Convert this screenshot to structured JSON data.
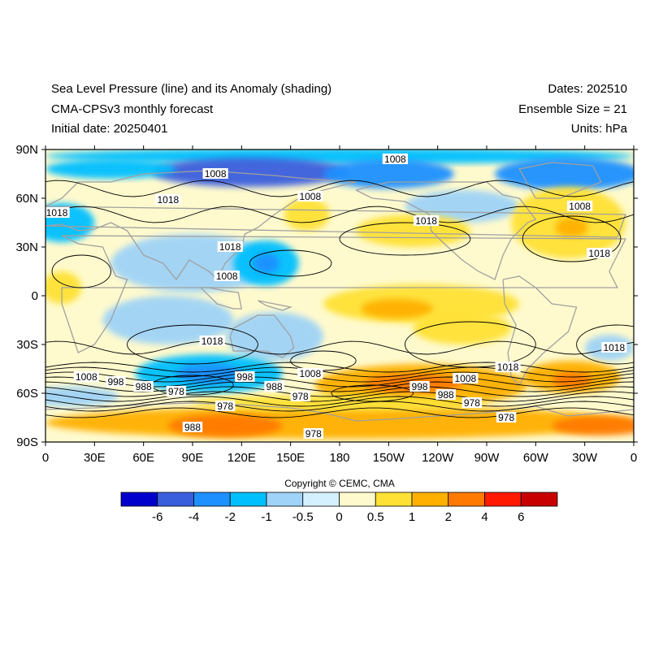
{
  "header": {
    "title": "Sea Level Pressure (line) and its Anomaly (shading)",
    "model": "CMA-CPSv3 monthly forecast",
    "initial_date": "Initial date: 20250401",
    "dates": "Dates: 202510",
    "ensemble": "Ensemble Size = 21",
    "units": "Units: hPa"
  },
  "axes": {
    "lat_ticks": [
      "90N",
      "60N",
      "30N",
      "0",
      "30S",
      "60S",
      "90S"
    ],
    "lon_ticks": [
      "0",
      "30E",
      "60E",
      "90E",
      "120E",
      "150E",
      "180",
      "150W",
      "120W",
      "90W",
      "60W",
      "30W",
      "0"
    ]
  },
  "contour_labels": [
    {
      "text": "1008",
      "lon": 214,
      "lat": 84
    },
    {
      "text": "1008",
      "lon": 104,
      "lat": 75
    },
    {
      "text": "1008",
      "lon": 162,
      "lat": 61
    },
    {
      "text": "1008",
      "lon": 327,
      "lat": 55
    },
    {
      "text": "1018",
      "lon": 7,
      "lat": 51
    },
    {
      "text": "1018",
      "lon": 75,
      "lat": 59
    },
    {
      "text": "1018",
      "lon": 233,
      "lat": 46
    },
    {
      "text": "1018",
      "lon": 113,
      "lat": 30
    },
    {
      "text": "1008",
      "lon": 111,
      "lat": 12
    },
    {
      "text": "1018",
      "lon": 339,
      "lat": 26
    },
    {
      "text": "1018",
      "lon": 102,
      "lat": -28
    },
    {
      "text": "1018",
      "lon": 348,
      "lat": -32
    },
    {
      "text": "1018",
      "lon": 283,
      "lat": -44
    },
    {
      "text": "1008",
      "lon": 25,
      "lat": -50
    },
    {
      "text": "998",
      "lon": 43,
      "lat": -53
    },
    {
      "text": "988",
      "lon": 60,
      "lat": -56
    },
    {
      "text": "978",
      "lon": 80,
      "lat": -59
    },
    {
      "text": "998",
      "lon": 122,
      "lat": -50
    },
    {
      "text": "988",
      "lon": 140,
      "lat": -56
    },
    {
      "text": "1008",
      "lon": 162,
      "lat": -48
    },
    {
      "text": "978",
      "lon": 156,
      "lat": -62
    },
    {
      "text": "998",
      "lon": 229,
      "lat": -56
    },
    {
      "text": "988",
      "lon": 245,
      "lat": -61
    },
    {
      "text": "1008",
      "lon": 257,
      "lat": -51
    },
    {
      "text": "978",
      "lon": 261,
      "lat": -66
    },
    {
      "text": "978",
      "lon": 110,
      "lat": -68
    },
    {
      "text": "978",
      "lon": 282,
      "lat": -75
    },
    {
      "text": "988",
      "lon": 90,
      "lat": -81
    },
    {
      "text": "978",
      "lon": 164,
      "lat": -85
    }
  ],
  "colorbar": {
    "ticks": [
      "-6",
      "-4",
      "-2",
      "-1",
      "-0.5",
      "0",
      "0.5",
      "1",
      "2",
      "4",
      "6"
    ],
    "colors": [
      "#0000cd",
      "#3a5fdd",
      "#1e90ff",
      "#00bfff",
      "#9fd3f7",
      "#d4f1ff",
      "#fffacd",
      "#ffe135",
      "#ffb000",
      "#ff7a00",
      "#ff1a00",
      "#c80000"
    ]
  },
  "copyright": "Copyright © CEMC, CMA",
  "anomaly_regions": [
    {
      "lon": 180,
      "lat": 86,
      "rx": 180,
      "ry": 5,
      "level": 3
    },
    {
      "lon": 125,
      "lat": 76,
      "rx": 60,
      "ry": 9,
      "level": 1
    },
    {
      "lon": 210,
      "lat": 75,
      "rx": 40,
      "ry": 9,
      "level": 2
    },
    {
      "lon": 40,
      "lat": 78,
      "rx": 40,
      "ry": 6,
      "level": 3
    },
    {
      "lon": 320,
      "lat": 75,
      "rx": 45,
      "ry": 10,
      "level": 2
    },
    {
      "lon": 10,
      "lat": 45,
      "rx": 20,
      "ry": 12,
      "level": 3
    },
    {
      "lon": 255,
      "lat": 55,
      "rx": 35,
      "ry": 10,
      "level": 4
    },
    {
      "lon": 320,
      "lat": 45,
      "rx": 35,
      "ry": 22,
      "level": 7
    },
    {
      "lon": 322,
      "lat": 42,
      "rx": 10,
      "ry": 6,
      "level": 8
    },
    {
      "lon": 160,
      "lat": 50,
      "rx": 14,
      "ry": 10,
      "level": 7
    },
    {
      "lon": 225,
      "lat": 40,
      "rx": 35,
      "ry": 10,
      "level": 7
    },
    {
      "lon": 90,
      "lat": 20,
      "rx": 50,
      "ry": 18,
      "level": 4
    },
    {
      "lon": 135,
      "lat": 20,
      "rx": 20,
      "ry": 14,
      "level": 3
    },
    {
      "lon": 135,
      "lat": 20,
      "rx": 8,
      "ry": 6,
      "level": 2
    },
    {
      "lon": 75,
      "lat": -15,
      "rx": 40,
      "ry": 15,
      "level": 4
    },
    {
      "lon": 140,
      "lat": -25,
      "rx": 30,
      "ry": 15,
      "level": 4
    },
    {
      "lon": 230,
      "lat": -5,
      "rx": 60,
      "ry": 12,
      "level": 7
    },
    {
      "lon": 215,
      "lat": -8,
      "rx": 22,
      "ry": 6,
      "level": 8
    },
    {
      "lon": 255,
      "lat": -20,
      "rx": 30,
      "ry": 10,
      "level": 7
    },
    {
      "lon": 10,
      "lat": 5,
      "rx": 12,
      "ry": 10,
      "level": 7
    },
    {
      "lon": 345,
      "lat": -32,
      "rx": 15,
      "ry": 8,
      "level": 4
    },
    {
      "lon": 100,
      "lat": -48,
      "rx": 45,
      "ry": 12,
      "level": 3
    },
    {
      "lon": 100,
      "lat": -48,
      "rx": 20,
      "ry": 6,
      "level": 2
    },
    {
      "lon": 15,
      "lat": -62,
      "rx": 30,
      "ry": 6,
      "level": 4
    },
    {
      "lon": 230,
      "lat": -55,
      "rx": 65,
      "ry": 13,
      "level": 8
    },
    {
      "lon": 225,
      "lat": -54,
      "rx": 30,
      "ry": 6,
      "level": 9
    },
    {
      "lon": 322,
      "lat": -50,
      "rx": 30,
      "ry": 10,
      "level": 8
    },
    {
      "lon": 322,
      "lat": -52,
      "rx": 12,
      "ry": 5,
      "level": 9
    },
    {
      "lon": 180,
      "lat": -78,
      "rx": 180,
      "ry": 10,
      "level": 8
    },
    {
      "lon": 110,
      "lat": -80,
      "rx": 35,
      "ry": 7,
      "level": 9
    },
    {
      "lon": 340,
      "lat": -80,
      "rx": 30,
      "ry": 6,
      "level": 9
    },
    {
      "lon": 180,
      "lat": -66,
      "rx": 90,
      "ry": 5,
      "level": 7
    }
  ]
}
